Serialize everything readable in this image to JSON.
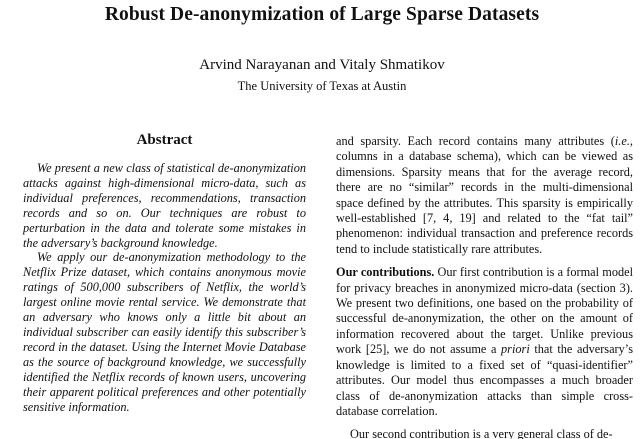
{
  "paper": {
    "title": "Robust De-anonymization of Large Sparse Datasets",
    "authors": "Arvind Narayanan and Vitaly Shmatikov",
    "affiliation": "The University of Texas at Austin"
  },
  "abstract": {
    "heading": "Abstract",
    "paragraph1": "We present a new class of statistical de-anonymization attacks against high-dimensional micro-data, such as individual preferences, recommendations, transaction records and so on. Our techniques are robust to perturbation in the data and tolerate some mistakes in the adversary’s background knowledge.",
    "paragraph2": "We apply our de-anonymization methodology to the Netflix Prize dataset, which contains anonymous movie ratings of 500,000 subscribers of Netflix, the world’s largest online movie rental service. We demonstrate that an adversary who knows only a little bit about an individual subscriber can easily identify this subscriber’s record in the dataset. Using the Internet Movie Database as the source of background knowledge, we successfully identified the Netflix records of known users, uncovering their apparent political preferences and other potentially sensitive information."
  },
  "intro": {
    "p1_a": "and sparsity. Each record contains many attributes (",
    "p1_ie": "i.e.",
    "p1_b": ", columns in a database schema), which can be viewed as dimensions. Sparsity means that for the average record, there are no “similar” records in the multi-dimensional space defined by the attributes. This sparsity is empirically well-established [7, 4, 19] and related to the “fat tail” phenomenon: individual transaction and preference records tend to include statistically rare attributes.",
    "contrib_heading": "Our contributions.",
    "p2_a": " Our first contribution is a formal model for privacy breaches in anonymized micro-data (section 3). We present two definitions, one based on the probability of successful de-anonymization, the other on the amount of information recovered about the target. Unlike previous work [25], we do not assume a ",
    "p2_apriori": "priori",
    "p2_b": " that the adversary’s knowledge is limited to a fixed set of “quasi-identifier” attributes. Our model thus encompasses a much broader class of de-anonymization attacks than simple cross-database correlation.",
    "p3_partial": "Our second contribution is a very general class of de-"
  }
}
